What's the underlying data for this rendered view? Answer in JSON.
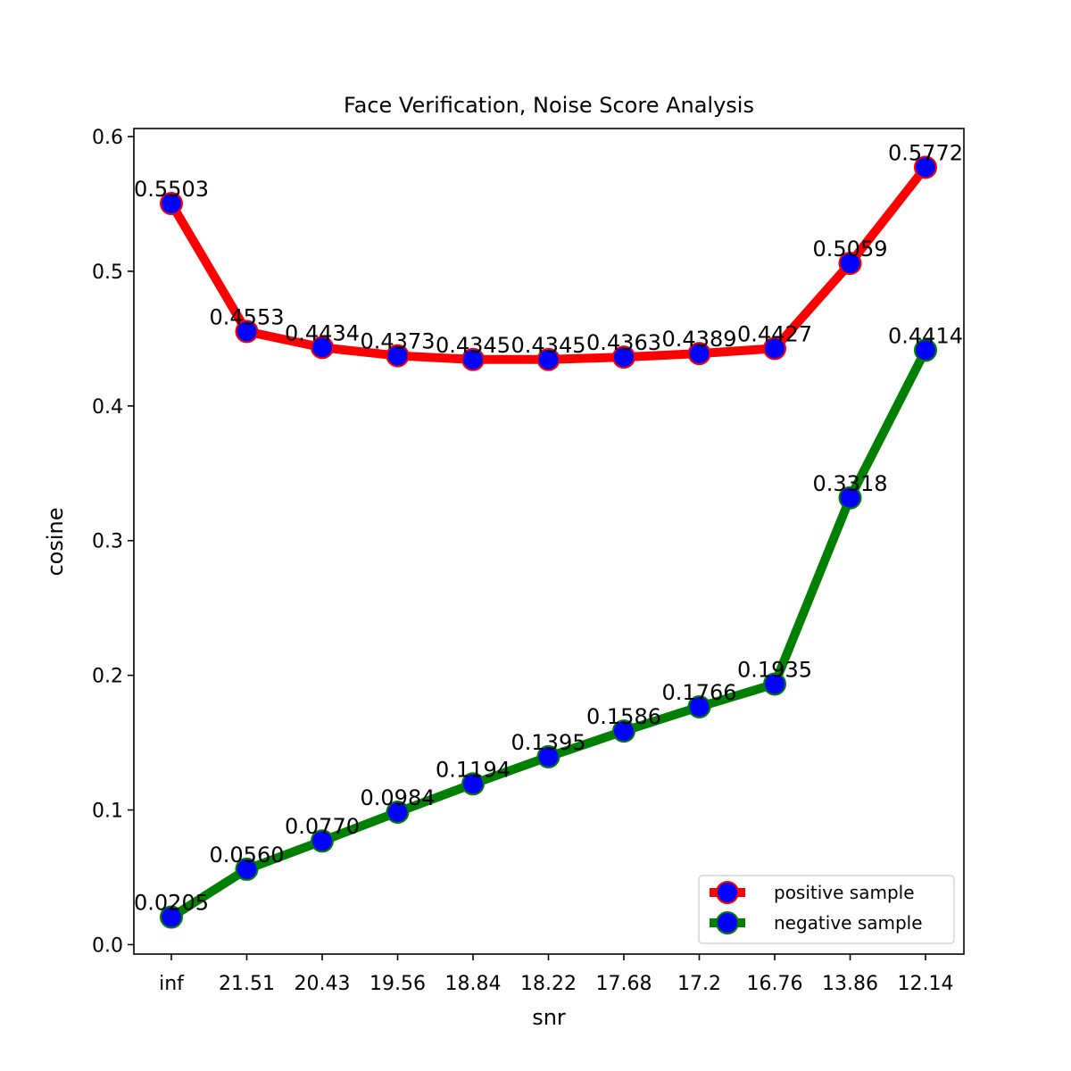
{
  "chart_data": {
    "type": "line",
    "title": "Face Verification, Noise Score Analysis",
    "xlabel": "snr",
    "ylabel": "cosine",
    "categories": [
      "inf",
      "21.51",
      "20.43",
      "19.56",
      "18.84",
      "18.22",
      "17.68",
      "17.2",
      "16.76",
      "13.86",
      "12.14"
    ],
    "ylim": [
      -0.007,
      0.606
    ],
    "yticks": [
      0.0,
      0.1,
      0.2,
      0.3,
      0.4,
      0.5,
      0.6
    ],
    "ytick_labels": [
      "0.0",
      "0.1",
      "0.2",
      "0.3",
      "0.4",
      "0.5",
      "0.6"
    ],
    "grid": false,
    "legend_position": "lower-right",
    "marker_color": "#0000ff",
    "series": [
      {
        "name": "positive sample",
        "color": "#ff0000",
        "values": [
          0.5503,
          0.4553,
          0.4434,
          0.4373,
          0.4345,
          0.4345,
          0.4363,
          0.4389,
          0.4427,
          0.5059,
          0.5772
        ],
        "labels": [
          "0.5503",
          "0.4553",
          "0.4434",
          "0.4373",
          "0.4345",
          "0.4345",
          "0.4363",
          "0.4389",
          "0.4427",
          "0.5059",
          "0.5772"
        ]
      },
      {
        "name": "negative sample",
        "color": "#008000",
        "values": [
          0.0205,
          0.056,
          0.077,
          0.0984,
          0.1194,
          0.1395,
          0.1586,
          0.1766,
          0.1935,
          0.3318,
          0.4414
        ],
        "labels": [
          "0.0205",
          "0.0560",
          "0.0770",
          "0.0984",
          "0.1194",
          "0.1395",
          "0.1586",
          "0.1766",
          "0.1935",
          "0.3318",
          "0.4414"
        ]
      }
    ]
  }
}
